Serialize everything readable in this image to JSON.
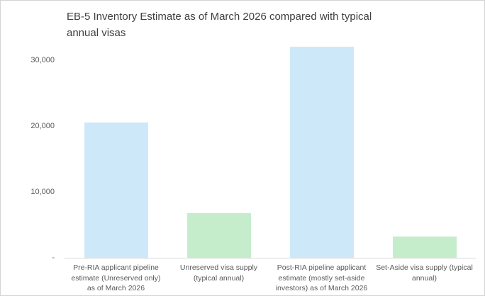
{
  "window": {
    "background": "#ffffff",
    "border_color": "#d4d4d4"
  },
  "chart": {
    "title_display": "EB-5 Inventory Estimate as of March 2026 compared with typical\nannual visas",
    "title_color": "#404040"
  },
  "chart_data": {
    "type": "bar",
    "title": "EB-5 Inventory Estimate as of March 2026 compared with typical annual visas",
    "categories": [
      "Pre-RIA applicant pipeline estimate (Unreserved only) as of March 2026",
      "Unreserved visa supply (typical annual)",
      "Post-RIA pipeline applicant estimate (mostly set-aside investors) as of March 2026",
      "Set-Aside visa supply (typical annual)"
    ],
    "category_lines": [
      [
        "Pre-RIA applicant pipeline",
        "estimate (Unreserved only)",
        "as of March 2026"
      ],
      [
        "Unreserved visa supply",
        "(typical annual)"
      ],
      [
        "Post-RIA pipeline applicant",
        "estimate (mostly set-aside",
        "investors) as of March 2026"
      ],
      [
        "Set-Aside visa supply (typical",
        "annual)"
      ]
    ],
    "values": [
      20500,
      6800,
      32000,
      3200
    ],
    "bar_colors": [
      "#cde9f9",
      "#c5edcb",
      "#cde9f9",
      "#c5edcb"
    ],
    "yticks": [
      {
        "value": 0,
        "label": "-"
      },
      {
        "value": 10000,
        "label": "10,000"
      },
      {
        "value": 20000,
        "label": "20,000"
      },
      {
        "value": 30000,
        "label": "30,000"
      }
    ],
    "ylim": [
      0,
      35000
    ],
    "xlabel": "",
    "ylabel": "",
    "grid": false,
    "legend": false,
    "axis_line_color": "#d9d9d9",
    "tick_label_color": "#595959"
  }
}
